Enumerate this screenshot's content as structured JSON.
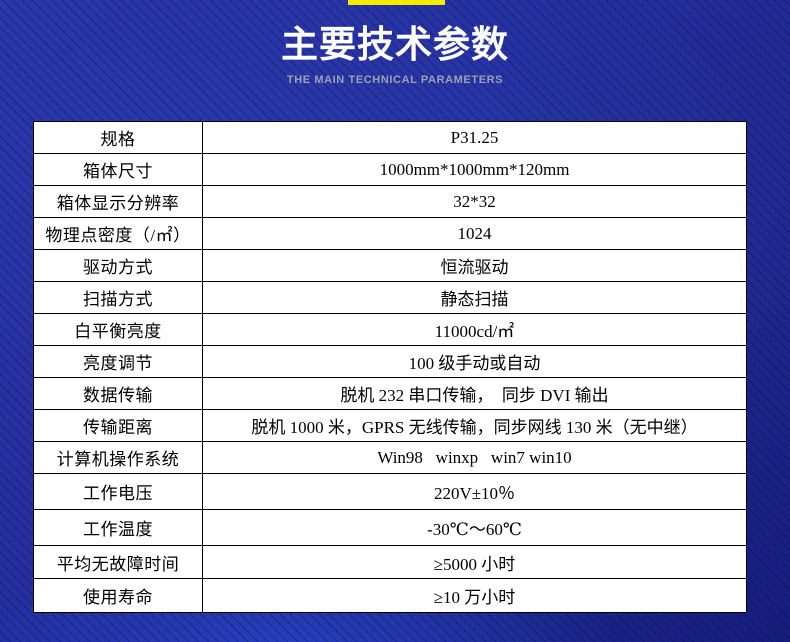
{
  "page": {
    "accent_bar_color": "#f3eb00",
    "background_color": "#232e9c"
  },
  "header": {
    "title": "主要技术参数",
    "subtitle": "THE MAIN TECHNICAL PARAMETERS"
  },
  "table": {
    "rows": [
      {
        "label": "规格",
        "value": "P31.25"
      },
      {
        "label": "箱体尺寸",
        "value": "1000mm*1000mm*120mm"
      },
      {
        "label": "箱体显示分辨率",
        "value": "32*32"
      },
      {
        "label": "物理点密度（/㎡）",
        "value": "1024"
      },
      {
        "label": "驱动方式",
        "value": "恒流驱动"
      },
      {
        "label": "扫描方式",
        "value": "静态扫描"
      },
      {
        "label": "白平衡亮度",
        "value": "11000cd/㎡"
      },
      {
        "label": "亮度调节",
        "value": "100 级手动或自动"
      },
      {
        "label": "数据传输",
        "value": "脱机 232 串口传输，  同步 DVI 输出"
      },
      {
        "label": "传输距离",
        "value": "脱机 1000 米，GPRS 无线传输，同步网线 130 米（无中继）"
      },
      {
        "label": "计算机操作系统",
        "value": "Win98   winxp   win7 win10"
      },
      {
        "label": "工作电压",
        "value": "220V±10％"
      },
      {
        "label": "工作温度",
        "value": "-30℃～60℃"
      },
      {
        "label": "平均无故障时间",
        "value": "≥5000 小时"
      },
      {
        "label": "使用寿命",
        "value": "≥10 万小时"
      }
    ]
  }
}
